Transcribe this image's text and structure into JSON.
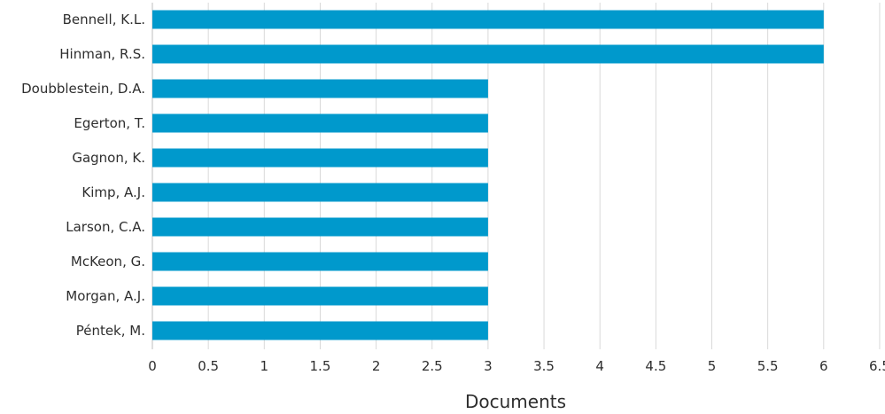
{
  "chart_data": {
    "type": "bar",
    "orientation": "horizontal",
    "categories": [
      "Bennell, K.L.",
      "Hinman, R.S.",
      "Doubblestein, D.A.",
      "Egerton, T.",
      "Gagnon, K.",
      "Kimp, A.J.",
      "Larson, C.A.",
      "McKeon, G.",
      "Morgan, A.J.",
      "Péntek, M."
    ],
    "values": [
      6,
      6,
      3,
      3,
      3,
      3,
      3,
      3,
      3,
      3
    ],
    "title": "",
    "xlabel": "Documents",
    "ylabel": "",
    "xlim": [
      0,
      6.5
    ],
    "xticks": [
      0,
      0.5,
      1,
      1.5,
      2,
      2.5,
      3,
      3.5,
      4,
      4.5,
      5,
      5.5,
      6,
      6.5
    ],
    "grid": "vertical",
    "bar_color": "#0099cc",
    "grid_color": "#d9d9d9",
    "axis_color": "#bfbfbf"
  }
}
